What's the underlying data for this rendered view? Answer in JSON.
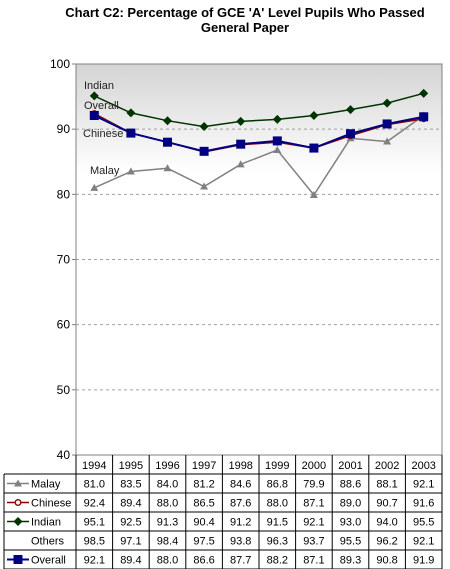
{
  "chart_data": {
    "type": "line",
    "title": [
      "Chart C2: Percentage of GCE 'A' Level Pupils Who Passed",
      "General Paper"
    ],
    "categories": [
      "1994",
      "1995",
      "1996",
      "1997",
      "1998",
      "1999",
      "2000",
      "2001",
      "2002",
      "2003"
    ],
    "ylim": [
      40,
      100
    ],
    "yticks": [
      40,
      50,
      60,
      70,
      80,
      90,
      100
    ],
    "grid": true,
    "series": [
      {
        "name": "Malay",
        "color": "#808080",
        "marker": "triangle",
        "plotted": true,
        "values": [
          81.0,
          83.5,
          84.0,
          81.2,
          84.6,
          86.8,
          79.9,
          88.6,
          88.1,
          92.1
        ]
      },
      {
        "name": "Chinese",
        "color": "#8b0000",
        "marker": "circle",
        "plotted": true,
        "values": [
          92.4,
          89.4,
          88.0,
          86.5,
          87.6,
          88.0,
          87.1,
          89.0,
          90.7,
          91.6
        ]
      },
      {
        "name": "Indian",
        "color": "#003300",
        "marker": "diamond",
        "plotted": true,
        "values": [
          95.1,
          92.5,
          91.3,
          90.4,
          91.2,
          91.5,
          92.1,
          93.0,
          94.0,
          95.5
        ]
      },
      {
        "name": "Others",
        "color": "",
        "marker": "none",
        "plotted": false,
        "values": [
          98.5,
          97.1,
          98.4,
          97.5,
          93.8,
          96.3,
          93.7,
          95.5,
          96.2,
          92.1
        ]
      },
      {
        "name": "Overall",
        "color": "#000080",
        "marker": "square",
        "plotted": true,
        "values": [
          92.1,
          89.4,
          88.0,
          86.6,
          87.7,
          88.2,
          87.1,
          89.3,
          90.8,
          91.9
        ]
      }
    ],
    "annotations": [
      "Indian",
      "Overall",
      "Chinese",
      "Malay"
    ],
    "legend_placement": "data-table"
  }
}
